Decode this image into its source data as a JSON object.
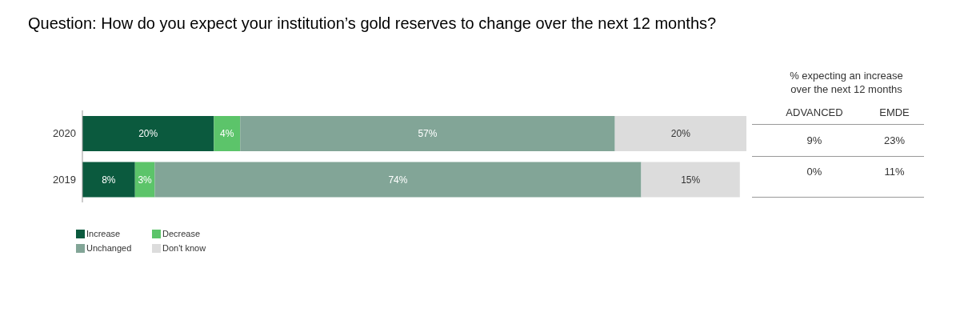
{
  "chart_data": {
    "type": "bar",
    "orientation": "horizontal",
    "stacked": true,
    "title": "Question: How do you expect your institution’s gold reserves to change over the next 12 months?",
    "categories": [
      "2020",
      "2019"
    ],
    "series": [
      {
        "name": "Increase",
        "color": "#0b5a3e",
        "values": [
          20,
          8
        ],
        "value_labels": [
          "20%",
          "8%"
        ]
      },
      {
        "name": "Decrease",
        "color": "#5cc46a",
        "values": [
          4,
          3
        ],
        "value_labels": [
          "4%",
          "3%"
        ]
      },
      {
        "name": "Unchanged",
        "color": "#82a597",
        "values": [
          57,
          74
        ],
        "value_labels": [
          "57%",
          "74%"
        ]
      },
      {
        "name": "Don't know",
        "color": "#dcdcdc",
        "values": [
          20,
          15
        ],
        "value_labels": [
          "20%",
          "15%"
        ]
      }
    ],
    "legend": "bottom left",
    "annotations": [
      "% expecting an increase over the next 12 months",
      "ADVANCED",
      "EMDE",
      "9%",
      "23%",
      "0%",
      "11%"
    ]
  }
}
